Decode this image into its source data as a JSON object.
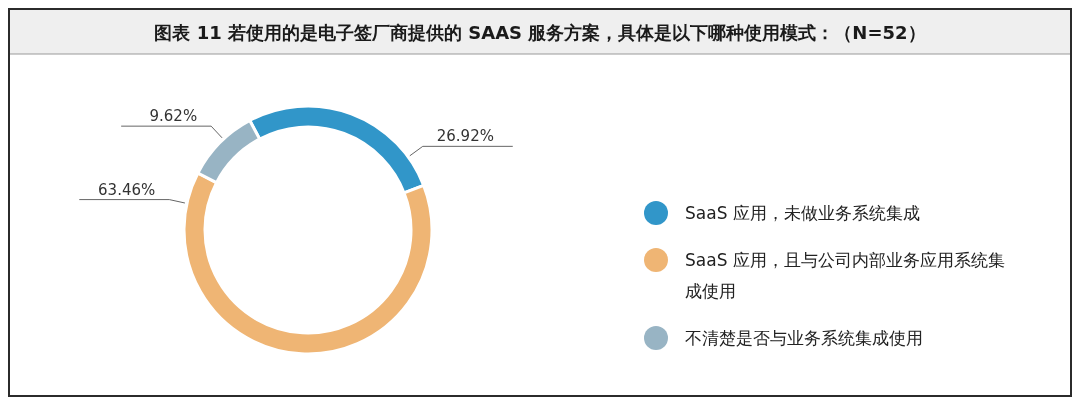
{
  "chart_data": {
    "type": "donut",
    "title": "图表 11  若使用的是电子签厂商提供的 SAAS 服务方案，具体是以下哪种使用模式：（N=52）",
    "categories": [
      "SaaS 应用，未做业务系统集成",
      "SaaS 应用，且与公司内部业务应用系统集成使用",
      "不清楚是否与业务系统集成使用"
    ],
    "values": [
      26.92,
      63.46,
      9.62
    ],
    "colors": [
      "#3196c9",
      "#efb574",
      "#98b4c4"
    ],
    "value_labels": [
      "26.92%",
      "63.46%",
      "9.62%"
    ],
    "legend": "right"
  }
}
